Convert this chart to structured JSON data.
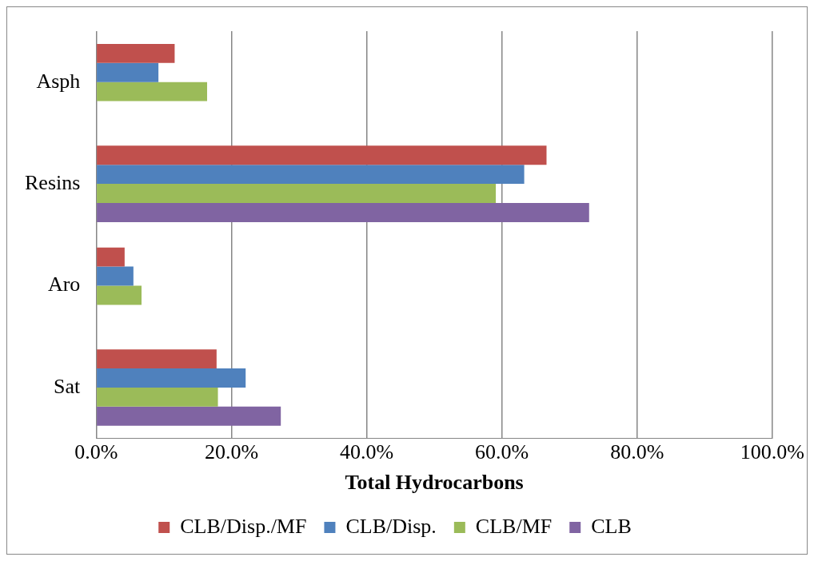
{
  "chart_data": {
    "type": "bar",
    "orientation": "horizontal",
    "xlabel": "Total Hydrocarbons",
    "categories": [
      "Asph",
      "Resins",
      "Aro",
      "Sat"
    ],
    "series": [
      {
        "name": "CLB/Disp./MF",
        "color": "#c0504d",
        "values": [
          11.6,
          66.6,
          4.2,
          17.8
        ]
      },
      {
        "name": "CLB/Disp.",
        "color": "#4f81bd",
        "values": [
          9.2,
          63.3,
          5.5,
          22.1
        ]
      },
      {
        "name": "CLB/MF",
        "color": "#9bbb59",
        "values": [
          16.4,
          59.1,
          6.7,
          18.0
        ]
      },
      {
        "name": "CLB",
        "color": "#8064a2",
        "values": [
          null,
          72.9,
          null,
          27.3
        ]
      }
    ],
    "xlim": [
      0,
      100
    ],
    "xticks": [
      {
        "value": 0,
        "label": "0.0%"
      },
      {
        "value": 20,
        "label": "20.0%"
      },
      {
        "value": 40,
        "label": "40.0%"
      },
      {
        "value": 60,
        "label": "60.0%"
      },
      {
        "value": 80,
        "label": "80.0%"
      },
      {
        "value": 100,
        "label": "100.0%"
      }
    ],
    "grid": "x",
    "legend": "bottom"
  }
}
